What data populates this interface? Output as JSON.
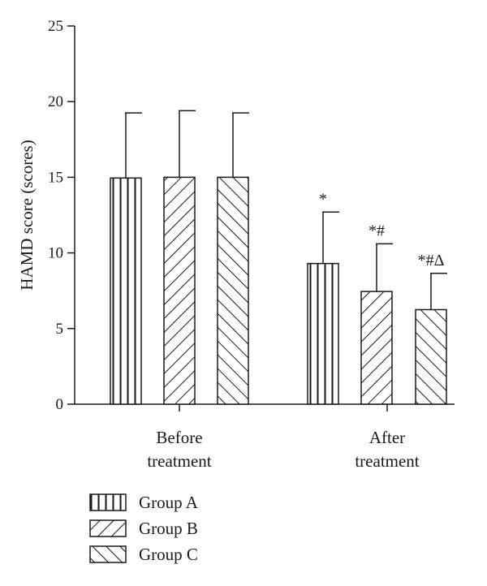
{
  "chart_data": {
    "type": "bar",
    "ylabel": "HAMD score (scores)",
    "ylim": [
      0,
      25
    ],
    "yticks": [
      "0",
      "5",
      "10",
      "15",
      "20",
      "25"
    ],
    "categories": [
      {
        "lines": [
          "Before",
          "treatment"
        ]
      },
      {
        "lines": [
          "After",
          "treatment"
        ]
      }
    ],
    "series": [
      {
        "name": "Group A",
        "pattern": "vertical",
        "values": [
          14.95,
          9.3
        ],
        "errors": [
          4.3,
          3.4
        ],
        "annotations": [
          "",
          "*"
        ]
      },
      {
        "name": "Group B",
        "pattern": "diag-up",
        "values": [
          15.0,
          7.45
        ],
        "errors": [
          4.4,
          3.15
        ],
        "annotations": [
          "",
          "*#"
        ]
      },
      {
        "name": "Group C",
        "pattern": "diag-down",
        "values": [
          15.0,
          6.25
        ],
        "errors": [
          4.25,
          2.4
        ],
        "annotations": [
          "",
          "*#Δ"
        ]
      }
    ],
    "legend_position": "bottom-left",
    "grid": false,
    "colors": {
      "stroke": "#1a1a1a",
      "fill": "#ffffff"
    }
  }
}
